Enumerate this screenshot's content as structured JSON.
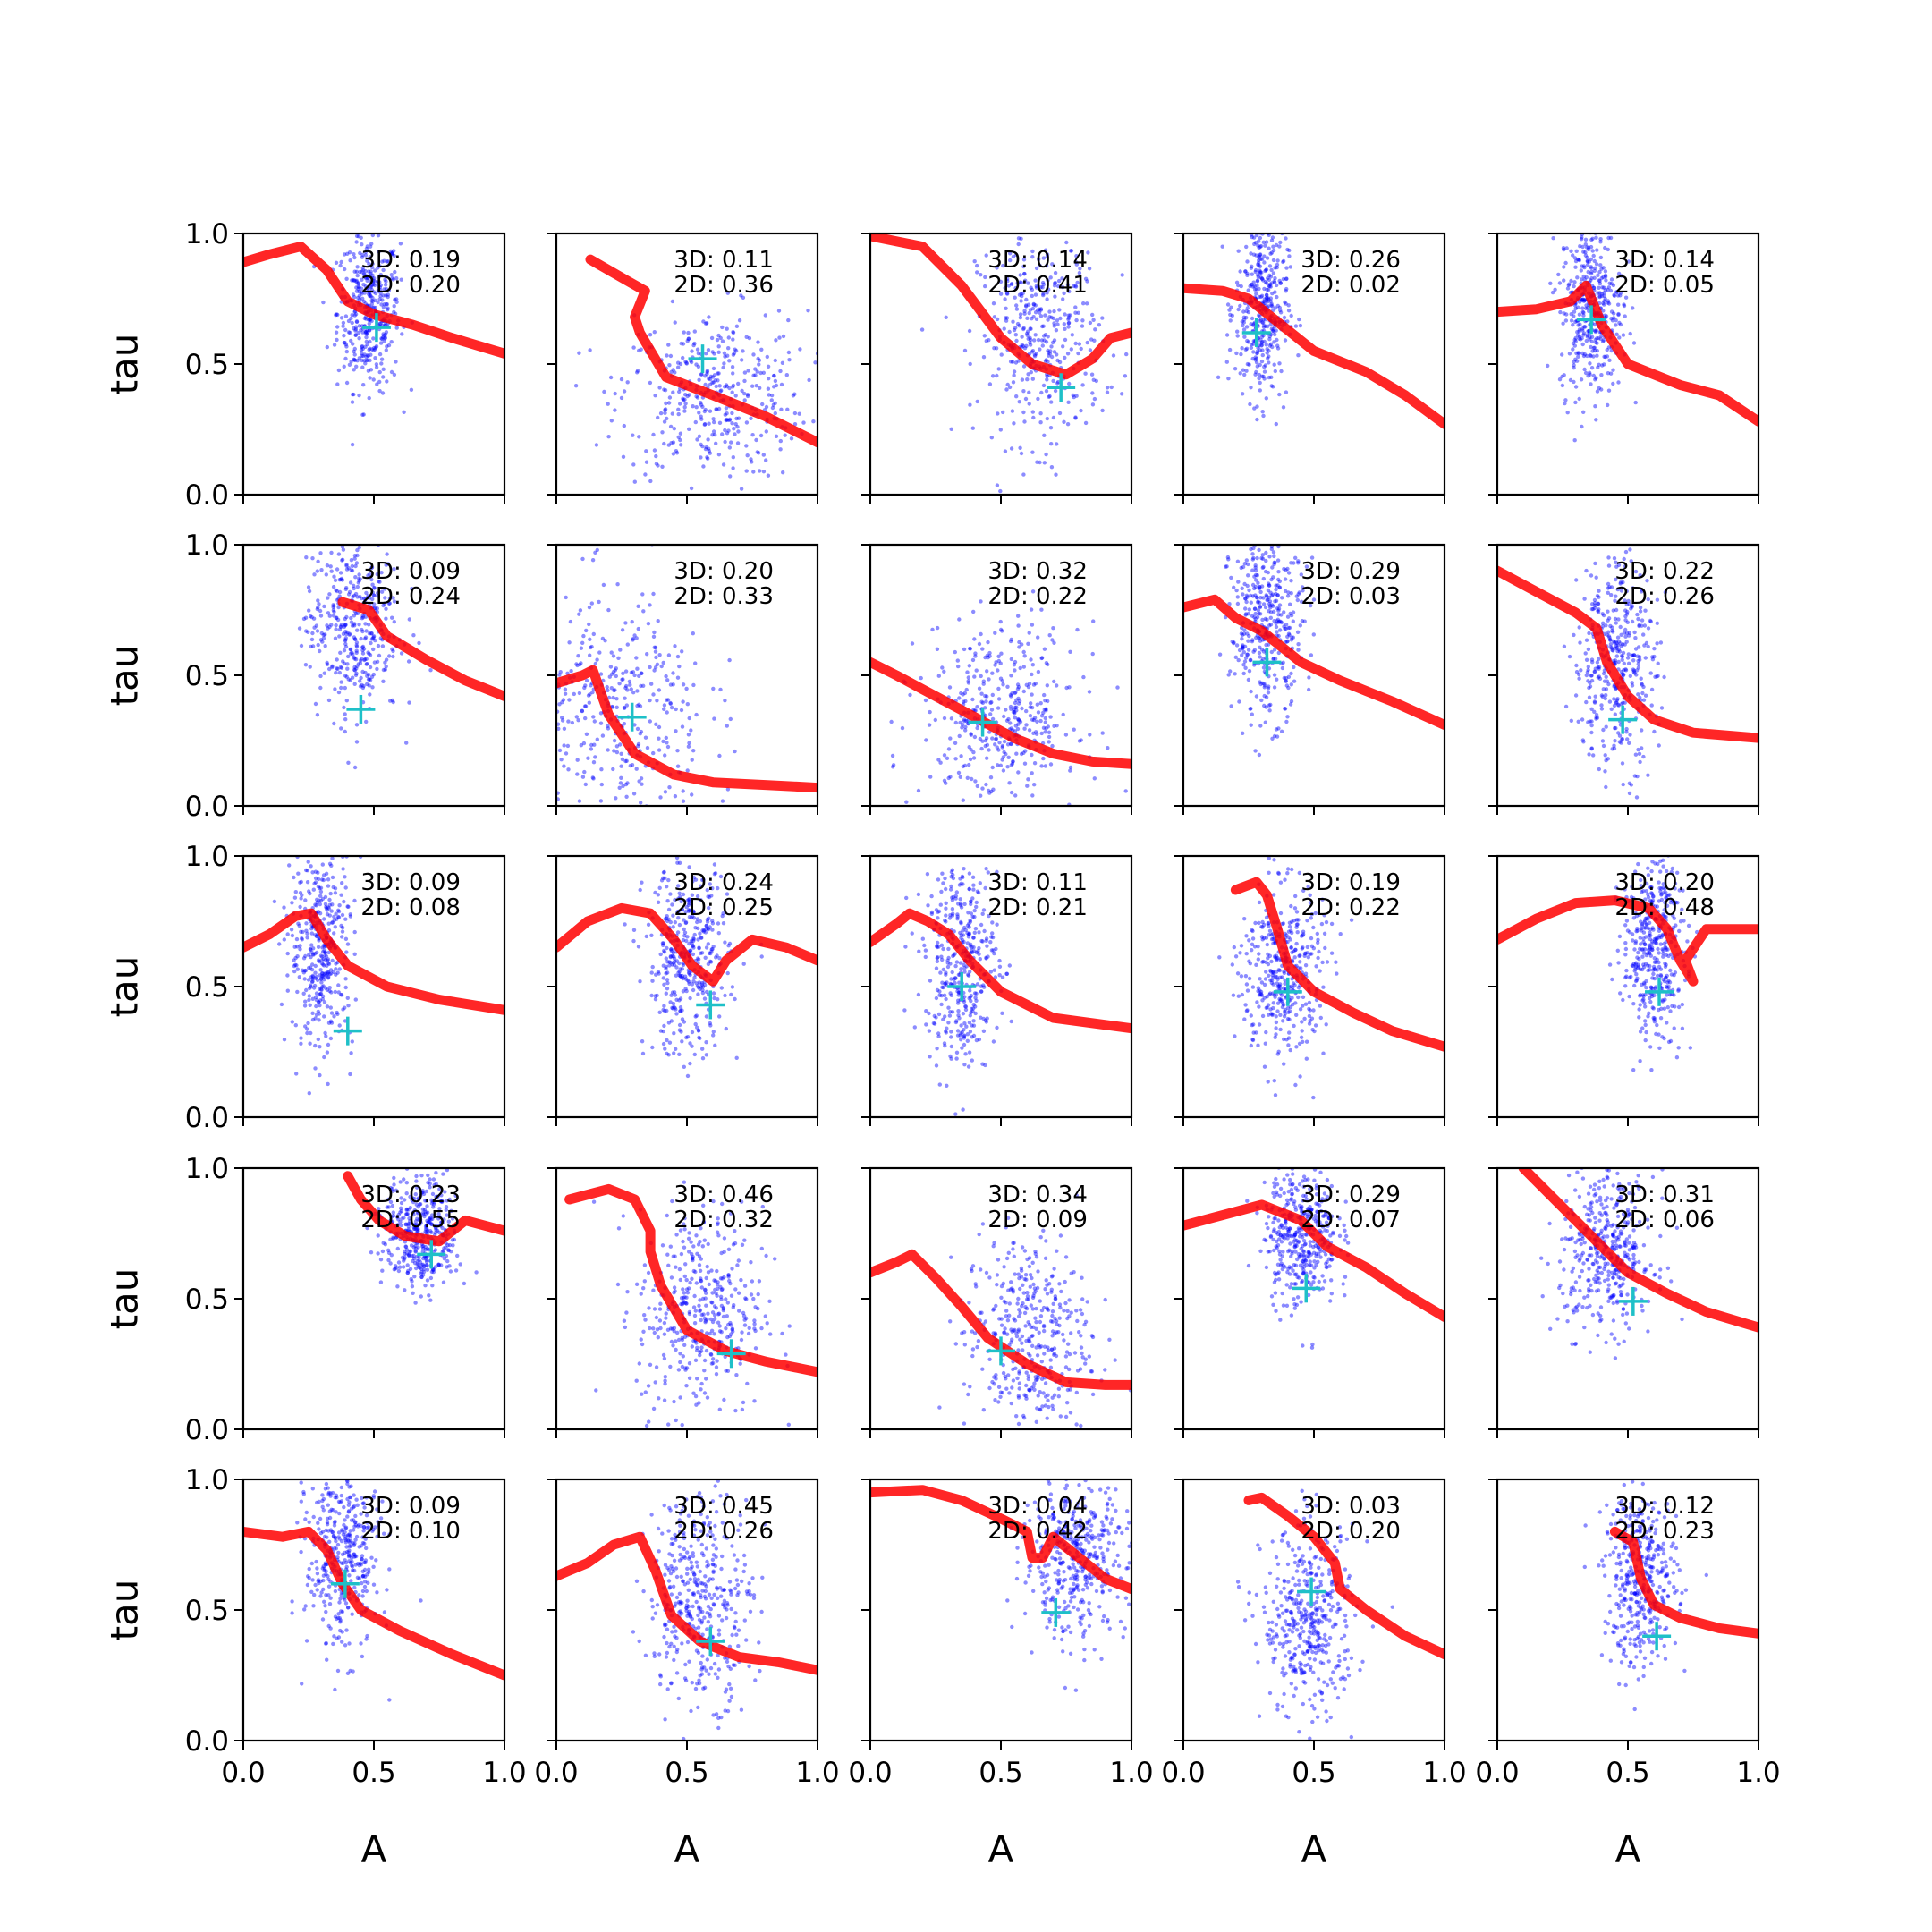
{
  "figure": {
    "xlabel": "A",
    "ylabel": "tau",
    "xlim": [
      0,
      1
    ],
    "ylim": [
      0,
      1
    ],
    "x_tick_labels": [
      "0.0",
      "0.5",
      "1.0"
    ],
    "y_tick_labels": [
      "0.0",
      "0.5",
      "1.0"
    ],
    "colors": {
      "samples": "#0000ff",
      "curve": "#ff0000",
      "marker": "#1ec0c8"
    },
    "grid": false
  },
  "chart_data": [
    {
      "type": "scatter",
      "row": 0,
      "col": 0,
      "metrics": [
        "3D: 0.19",
        "2D: 0.20"
      ],
      "marker": [
        0.51,
        0.64
      ],
      "cloud": {
        "cx": 0.48,
        "cy": 0.7,
        "sx": 0.06,
        "sy": 0.15
      },
      "curve": [
        [
          0,
          0.89
        ],
        [
          0.1,
          0.92
        ],
        [
          0.22,
          0.95
        ],
        [
          0.32,
          0.86
        ],
        [
          0.4,
          0.74
        ],
        [
          0.5,
          0.69
        ],
        [
          0.65,
          0.65
        ],
        [
          0.8,
          0.6
        ],
        [
          1.0,
          0.54
        ]
      ]
    },
    {
      "type": "scatter",
      "row": 0,
      "col": 1,
      "metrics": [
        "3D: 0.11",
        "2D: 0.36"
      ],
      "marker": [
        0.56,
        0.52
      ],
      "cloud": {
        "cx": 0.6,
        "cy": 0.38,
        "sx": 0.18,
        "sy": 0.16
      },
      "curve": [
        [
          0.13,
          0.9
        ],
        [
          0.27,
          0.82
        ],
        [
          0.34,
          0.78
        ],
        [
          0.3,
          0.68
        ],
        [
          0.32,
          0.62
        ],
        [
          0.42,
          0.45
        ],
        [
          0.6,
          0.38
        ],
        [
          0.8,
          0.3
        ],
        [
          1.0,
          0.2
        ]
      ]
    },
    {
      "type": "scatter",
      "row": 0,
      "col": 2,
      "metrics": [
        "3D: 0.14",
        "2D: 0.41"
      ],
      "marker": [
        0.73,
        0.41
      ],
      "cloud": {
        "cx": 0.65,
        "cy": 0.6,
        "sx": 0.12,
        "sy": 0.2
      },
      "curve": [
        [
          0,
          0.99
        ],
        [
          0.2,
          0.95
        ],
        [
          0.35,
          0.8
        ],
        [
          0.5,
          0.6
        ],
        [
          0.62,
          0.5
        ],
        [
          0.75,
          0.46
        ],
        [
          0.85,
          0.52
        ],
        [
          0.92,
          0.6
        ],
        [
          1.0,
          0.62
        ]
      ]
    },
    {
      "type": "scatter",
      "row": 0,
      "col": 3,
      "metrics": [
        "3D: 0.26",
        "2D: 0.02"
      ],
      "marker": [
        0.28,
        0.62
      ],
      "cloud": {
        "cx": 0.3,
        "cy": 0.72,
        "sx": 0.05,
        "sy": 0.18
      },
      "curve": [
        [
          0,
          0.79
        ],
        [
          0.15,
          0.78
        ],
        [
          0.25,
          0.75
        ],
        [
          0.35,
          0.67
        ],
        [
          0.5,
          0.55
        ],
        [
          0.7,
          0.47
        ],
        [
          0.85,
          0.38
        ],
        [
          1.0,
          0.27
        ]
      ]
    },
    {
      "type": "scatter",
      "row": 0,
      "col": 4,
      "metrics": [
        "3D: 0.14",
        "2D: 0.05"
      ],
      "marker": [
        0.36,
        0.67
      ],
      "cloud": {
        "cx": 0.36,
        "cy": 0.72,
        "sx": 0.06,
        "sy": 0.17
      },
      "curve": [
        [
          0,
          0.7
        ],
        [
          0.15,
          0.71
        ],
        [
          0.28,
          0.74
        ],
        [
          0.34,
          0.8
        ],
        [
          0.4,
          0.65
        ],
        [
          0.5,
          0.5
        ],
        [
          0.7,
          0.42
        ],
        [
          0.85,
          0.38
        ],
        [
          1.0,
          0.28
        ]
      ]
    },
    {
      "type": "scatter",
      "row": 1,
      "col": 0,
      "metrics": [
        "3D: 0.09",
        "2D: 0.24"
      ],
      "marker": [
        0.45,
        0.37
      ],
      "cloud": {
        "cx": 0.42,
        "cy": 0.7,
        "sx": 0.09,
        "sy": 0.18
      },
      "curve": [
        [
          0.38,
          0.78
        ],
        [
          0.48,
          0.75
        ],
        [
          0.55,
          0.65
        ],
        [
          0.7,
          0.56
        ],
        [
          0.85,
          0.48
        ],
        [
          1.0,
          0.42
        ]
      ]
    },
    {
      "type": "scatter",
      "row": 1,
      "col": 1,
      "metrics": [
        "3D: 0.20",
        "2D: 0.33"
      ],
      "marker": [
        0.29,
        0.34
      ],
      "cloud": {
        "cx": 0.22,
        "cy": 0.35,
        "sx": 0.18,
        "sy": 0.24
      },
      "curve": [
        [
          0,
          0.47
        ],
        [
          0.1,
          0.5
        ],
        [
          0.14,
          0.52
        ],
        [
          0.2,
          0.35
        ],
        [
          0.3,
          0.2
        ],
        [
          0.45,
          0.12
        ],
        [
          0.6,
          0.09
        ],
        [
          0.8,
          0.08
        ],
        [
          1.0,
          0.07
        ]
      ]
    },
    {
      "type": "scatter",
      "row": 1,
      "col": 2,
      "metrics": [
        "3D: 0.32",
        "2D: 0.22"
      ],
      "marker": [
        0.43,
        0.32
      ],
      "cloud": {
        "cx": 0.5,
        "cy": 0.35,
        "sx": 0.15,
        "sy": 0.17
      },
      "curve": [
        [
          0,
          0.55
        ],
        [
          0.1,
          0.5
        ],
        [
          0.25,
          0.42
        ],
        [
          0.4,
          0.34
        ],
        [
          0.55,
          0.26
        ],
        [
          0.7,
          0.2
        ],
        [
          0.85,
          0.17
        ],
        [
          1.0,
          0.16
        ]
      ]
    },
    {
      "type": "scatter",
      "row": 1,
      "col": 3,
      "metrics": [
        "3D: 0.29",
        "2D: 0.03"
      ],
      "marker": [
        0.32,
        0.55
      ],
      "cloud": {
        "cx": 0.32,
        "cy": 0.7,
        "sx": 0.07,
        "sy": 0.18
      },
      "curve": [
        [
          0,
          0.76
        ],
        [
          0.12,
          0.79
        ],
        [
          0.2,
          0.72
        ],
        [
          0.3,
          0.67
        ],
        [
          0.45,
          0.55
        ],
        [
          0.6,
          0.48
        ],
        [
          0.8,
          0.4
        ],
        [
          1.0,
          0.31
        ]
      ]
    },
    {
      "type": "scatter",
      "row": 1,
      "col": 4,
      "metrics": [
        "3D: 0.22",
        "2D: 0.26"
      ],
      "marker": [
        0.48,
        0.33
      ],
      "cloud": {
        "cx": 0.45,
        "cy": 0.55,
        "sx": 0.08,
        "sy": 0.2
      },
      "curve": [
        [
          0,
          0.9
        ],
        [
          0.15,
          0.82
        ],
        [
          0.3,
          0.74
        ],
        [
          0.38,
          0.68
        ],
        [
          0.42,
          0.55
        ],
        [
          0.5,
          0.42
        ],
        [
          0.6,
          0.33
        ],
        [
          0.75,
          0.28
        ],
        [
          1.0,
          0.26
        ]
      ]
    },
    {
      "type": "scatter",
      "row": 2,
      "col": 0,
      "metrics": [
        "3D: 0.09",
        "2D: 0.08"
      ],
      "marker": [
        0.4,
        0.33
      ],
      "cloud": {
        "cx": 0.3,
        "cy": 0.65,
        "sx": 0.06,
        "sy": 0.2
      },
      "curve": [
        [
          0,
          0.65
        ],
        [
          0.1,
          0.7
        ],
        [
          0.2,
          0.77
        ],
        [
          0.26,
          0.78
        ],
        [
          0.32,
          0.68
        ],
        [
          0.4,
          0.58
        ],
        [
          0.55,
          0.5
        ],
        [
          0.75,
          0.45
        ],
        [
          1.0,
          0.41
        ]
      ]
    },
    {
      "type": "scatter",
      "row": 2,
      "col": 1,
      "metrics": [
        "3D: 0.24",
        "2D: 0.25"
      ],
      "marker": [
        0.59,
        0.43
      ],
      "cloud": {
        "cx": 0.5,
        "cy": 0.6,
        "sx": 0.08,
        "sy": 0.18
      },
      "curve": [
        [
          0,
          0.65
        ],
        [
          0.12,
          0.75
        ],
        [
          0.25,
          0.8
        ],
        [
          0.36,
          0.78
        ],
        [
          0.45,
          0.68
        ],
        [
          0.52,
          0.58
        ],
        [
          0.6,
          0.52
        ],
        [
          0.65,
          0.6
        ],
        [
          0.75,
          0.68
        ],
        [
          0.88,
          0.65
        ],
        [
          1.0,
          0.6
        ]
      ]
    },
    {
      "type": "scatter",
      "row": 2,
      "col": 2,
      "metrics": [
        "3D: 0.11",
        "2D: 0.21"
      ],
      "marker": [
        0.35,
        0.5
      ],
      "cloud": {
        "cx": 0.35,
        "cy": 0.6,
        "sx": 0.07,
        "sy": 0.2
      },
      "curve": [
        [
          0,
          0.67
        ],
        [
          0.1,
          0.74
        ],
        [
          0.15,
          0.78
        ],
        [
          0.22,
          0.75
        ],
        [
          0.3,
          0.7
        ],
        [
          0.38,
          0.6
        ],
        [
          0.5,
          0.48
        ],
        [
          0.7,
          0.38
        ],
        [
          1.0,
          0.34
        ]
      ]
    },
    {
      "type": "scatter",
      "row": 2,
      "col": 3,
      "metrics": [
        "3D: 0.19",
        "2D: 0.22"
      ],
      "marker": [
        0.4,
        0.48
      ],
      "cloud": {
        "cx": 0.38,
        "cy": 0.55,
        "sx": 0.08,
        "sy": 0.17
      },
      "curve": [
        [
          0.2,
          0.87
        ],
        [
          0.28,
          0.9
        ],
        [
          0.32,
          0.85
        ],
        [
          0.36,
          0.72
        ],
        [
          0.4,
          0.58
        ],
        [
          0.5,
          0.48
        ],
        [
          0.65,
          0.4
        ],
        [
          0.8,
          0.33
        ],
        [
          1.0,
          0.27
        ]
      ]
    },
    {
      "type": "scatter",
      "row": 2,
      "col": 4,
      "metrics": [
        "3D: 0.20",
        "2D: 0.48"
      ],
      "marker": [
        0.62,
        0.48
      ],
      "cloud": {
        "cx": 0.6,
        "cy": 0.65,
        "sx": 0.06,
        "sy": 0.17
      },
      "curve": [
        [
          0,
          0.68
        ],
        [
          0.15,
          0.76
        ],
        [
          0.3,
          0.82
        ],
        [
          0.45,
          0.83
        ],
        [
          0.58,
          0.8
        ],
        [
          0.65,
          0.72
        ],
        [
          0.7,
          0.6
        ],
        [
          0.75,
          0.52
        ],
        [
          0.72,
          0.6
        ],
        [
          0.8,
          0.72
        ],
        [
          1.0,
          0.72
        ]
      ]
    },
    {
      "type": "scatter",
      "row": 3,
      "col": 0,
      "metrics": [
        "3D: 0.23",
        "2D: 0.55"
      ],
      "marker": [
        0.72,
        0.67
      ],
      "cloud": {
        "cx": 0.68,
        "cy": 0.75,
        "sx": 0.07,
        "sy": 0.11
      },
      "curve": [
        [
          0.4,
          0.97
        ],
        [
          0.45,
          0.88
        ],
        [
          0.52,
          0.8
        ],
        [
          0.62,
          0.74
        ],
        [
          0.75,
          0.72
        ],
        [
          0.85,
          0.8
        ],
        [
          1.0,
          0.76
        ]
      ]
    },
    {
      "type": "scatter",
      "row": 3,
      "col": 1,
      "metrics": [
        "3D: 0.46",
        "2D: 0.32"
      ],
      "marker": [
        0.67,
        0.29
      ],
      "cloud": {
        "cx": 0.55,
        "cy": 0.45,
        "sx": 0.12,
        "sy": 0.2
      },
      "curve": [
        [
          0.05,
          0.88
        ],
        [
          0.2,
          0.92
        ],
        [
          0.3,
          0.88
        ],
        [
          0.36,
          0.76
        ],
        [
          0.36,
          0.68
        ],
        [
          0.4,
          0.55
        ],
        [
          0.5,
          0.38
        ],
        [
          0.65,
          0.3
        ],
        [
          0.8,
          0.26
        ],
        [
          1.0,
          0.22
        ]
      ]
    },
    {
      "type": "scatter",
      "row": 3,
      "col": 2,
      "metrics": [
        "3D: 0.34",
        "2D: 0.09"
      ],
      "marker": [
        0.5,
        0.3
      ],
      "cloud": {
        "cx": 0.6,
        "cy": 0.35,
        "sx": 0.12,
        "sy": 0.2
      },
      "curve": [
        [
          0,
          0.6
        ],
        [
          0.1,
          0.64
        ],
        [
          0.16,
          0.67
        ],
        [
          0.25,
          0.58
        ],
        [
          0.35,
          0.47
        ],
        [
          0.45,
          0.35
        ],
        [
          0.6,
          0.25
        ],
        [
          0.75,
          0.18
        ],
        [
          0.9,
          0.17
        ],
        [
          1.0,
          0.17
        ]
      ]
    },
    {
      "type": "scatter",
      "row": 3,
      "col": 3,
      "metrics": [
        "3D: 0.29",
        "2D: 0.07"
      ],
      "marker": [
        0.47,
        0.54
      ],
      "cloud": {
        "cx": 0.45,
        "cy": 0.75,
        "sx": 0.07,
        "sy": 0.14
      },
      "curve": [
        [
          0,
          0.78
        ],
        [
          0.15,
          0.82
        ],
        [
          0.3,
          0.86
        ],
        [
          0.45,
          0.8
        ],
        [
          0.55,
          0.7
        ],
        [
          0.7,
          0.62
        ],
        [
          0.85,
          0.52
        ],
        [
          1.0,
          0.43
        ]
      ]
    },
    {
      "type": "scatter",
      "row": 3,
      "col": 4,
      "metrics": [
        "3D: 0.31",
        "2D: 0.06"
      ],
      "marker": [
        0.52,
        0.49
      ],
      "cloud": {
        "cx": 0.42,
        "cy": 0.68,
        "sx": 0.09,
        "sy": 0.15
      },
      "curve": [
        [
          0.1,
          1.0
        ],
        [
          0.25,
          0.85
        ],
        [
          0.38,
          0.72
        ],
        [
          0.5,
          0.6
        ],
        [
          0.65,
          0.52
        ],
        [
          0.8,
          0.45
        ],
        [
          1.0,
          0.39
        ]
      ]
    },
    {
      "type": "scatter",
      "row": 4,
      "col": 0,
      "metrics": [
        "3D: 0.09",
        "2D: 0.10"
      ],
      "marker": [
        0.39,
        0.6
      ],
      "cloud": {
        "cx": 0.38,
        "cy": 0.7,
        "sx": 0.07,
        "sy": 0.18
      },
      "curve": [
        [
          0,
          0.8
        ],
        [
          0.15,
          0.78
        ],
        [
          0.25,
          0.8
        ],
        [
          0.32,
          0.73
        ],
        [
          0.38,
          0.6
        ],
        [
          0.45,
          0.5
        ],
        [
          0.6,
          0.42
        ],
        [
          0.8,
          0.33
        ],
        [
          1.0,
          0.25
        ]
      ]
    },
    {
      "type": "scatter",
      "row": 4,
      "col": 1,
      "metrics": [
        "3D: 0.45",
        "2D: 0.26"
      ],
      "marker": [
        0.59,
        0.38
      ],
      "cloud": {
        "cx": 0.55,
        "cy": 0.55,
        "sx": 0.1,
        "sy": 0.2
      },
      "curve": [
        [
          0,
          0.63
        ],
        [
          0.12,
          0.68
        ],
        [
          0.22,
          0.75
        ],
        [
          0.32,
          0.78
        ],
        [
          0.38,
          0.65
        ],
        [
          0.44,
          0.48
        ],
        [
          0.55,
          0.38
        ],
        [
          0.7,
          0.32
        ],
        [
          0.85,
          0.3
        ],
        [
          1.0,
          0.27
        ]
      ]
    },
    {
      "type": "scatter",
      "row": 4,
      "col": 2,
      "metrics": [
        "3D: 0.04",
        "2D: 0.42"
      ],
      "marker": [
        0.71,
        0.49
      ],
      "cloud": {
        "cx": 0.78,
        "cy": 0.7,
        "sx": 0.1,
        "sy": 0.15
      },
      "curve": [
        [
          0,
          0.95
        ],
        [
          0.2,
          0.96
        ],
        [
          0.35,
          0.92
        ],
        [
          0.5,
          0.85
        ],
        [
          0.6,
          0.8
        ],
        [
          0.62,
          0.7
        ],
        [
          0.66,
          0.7
        ],
        [
          0.7,
          0.78
        ],
        [
          0.8,
          0.7
        ],
        [
          0.9,
          0.62
        ],
        [
          1.0,
          0.58
        ]
      ]
    },
    {
      "type": "scatter",
      "row": 4,
      "col": 3,
      "metrics": [
        "3D: 0.03",
        "2D: 0.20"
      ],
      "marker": [
        0.49,
        0.57
      ],
      "cloud": {
        "cx": 0.48,
        "cy": 0.45,
        "sx": 0.09,
        "sy": 0.18
      },
      "curve": [
        [
          0.25,
          0.92
        ],
        [
          0.3,
          0.93
        ],
        [
          0.4,
          0.86
        ],
        [
          0.5,
          0.78
        ],
        [
          0.58,
          0.68
        ],
        [
          0.6,
          0.58
        ],
        [
          0.7,
          0.5
        ],
        [
          0.85,
          0.4
        ],
        [
          1.0,
          0.33
        ]
      ]
    },
    {
      "type": "scatter",
      "row": 4,
      "col": 4,
      "metrics": [
        "3D: 0.12",
        "2D: 0.23"
      ],
      "marker": [
        0.61,
        0.4
      ],
      "cloud": {
        "cx": 0.55,
        "cy": 0.62,
        "sx": 0.07,
        "sy": 0.17
      },
      "curve": [
        [
          0.45,
          0.8
        ],
        [
          0.52,
          0.76
        ],
        [
          0.55,
          0.62
        ],
        [
          0.6,
          0.52
        ],
        [
          0.7,
          0.47
        ],
        [
          0.85,
          0.43
        ],
        [
          1.0,
          0.41
        ]
      ]
    }
  ]
}
